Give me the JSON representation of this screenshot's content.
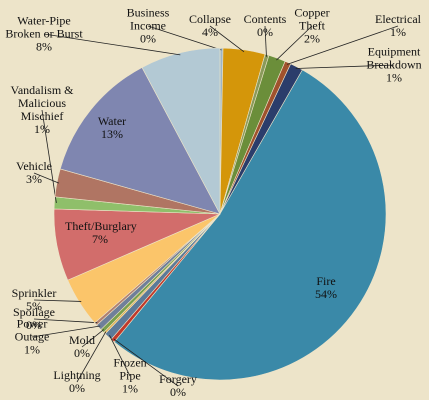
{
  "chart_data": {
    "type": "pie",
    "categories": [
      "Business Income",
      "Collapse",
      "Contents",
      "Copper Theft",
      "Electrical",
      "Equipment Breakdown",
      "Fire",
      "Forgery",
      "Frozen Pipe",
      "Lightning",
      "Mold",
      "Power Outage",
      "Spoilage",
      "Sprinkler",
      "Theft/Burglary",
      "Vandalism & Malicious Mischief",
      "Vehicle",
      "Water",
      "Water-Pipe Broken or Burst"
    ],
    "values": [
      0.3,
      4.2,
      0.4,
      1.7,
      0.6,
      1.3,
      54.2,
      0.4,
      0.8,
      0.2,
      0.4,
      0.6,
      0.3,
      5,
      7.2,
      1.2,
      2.8,
      13.2,
      8
    ],
    "value_labels": [
      "0%",
      "4%",
      "0%",
      "2%",
      "1%",
      "1%",
      "54%",
      "0%",
      "1%",
      "0%",
      "0%",
      "1%",
      "0%",
      "5%",
      "7%",
      "1%",
      "3%",
      "13%",
      "8%"
    ],
    "colors": [
      "#9fb6c6",
      "#d4960a",
      "#8a9a5b",
      "#6b8e3a",
      "#a0522d",
      "#2b3d6b",
      "#3a89a8",
      "#c0392b",
      "#5b7a99",
      "#e0b050",
      "#7a9f4c",
      "#6f7f9a",
      "#b08070",
      "#fbc56a",
      "#d26d6b",
      "#8fbf6a",
      "#b07563",
      "#7f86b0",
      "#b3c9d4"
    ]
  }
}
